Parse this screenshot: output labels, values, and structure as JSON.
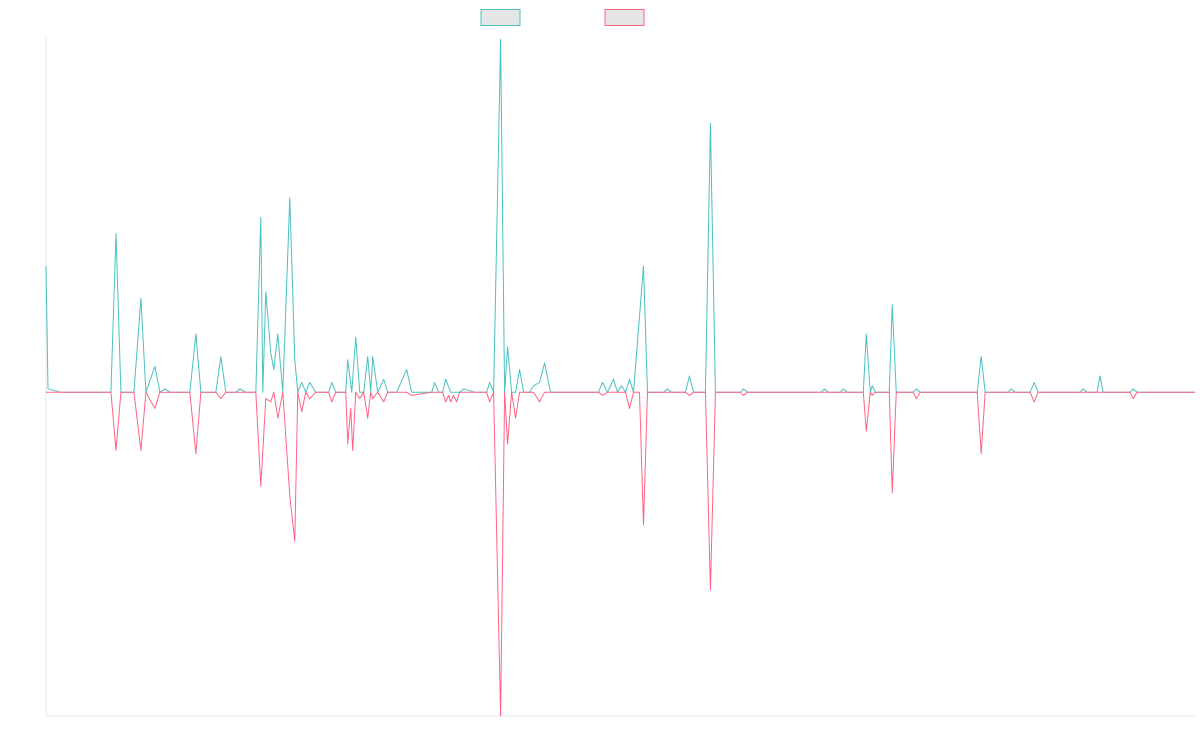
{
  "chart_data": {
    "type": "line",
    "title": "",
    "xlabel": "",
    "ylabel": "",
    "grid": false,
    "legend_position": "top-center",
    "xlim": [
      0,
      1150
    ],
    "ylim": [
      -1,
      1.1
    ],
    "series": [
      {
        "color": "#4bc0c0",
        "legend_fill": "#e6e6e6",
        "points": [
          [
            0,
            0.39
          ],
          [
            2,
            0.01
          ],
          [
            15,
            0
          ],
          [
            65,
            0
          ],
          [
            70,
            0.49
          ],
          [
            75,
            0
          ],
          [
            88,
            0
          ],
          [
            95,
            0.29
          ],
          [
            100,
            0
          ],
          [
            109,
            0.08
          ],
          [
            114,
            0
          ],
          [
            119,
            0.01
          ],
          [
            124,
            0
          ],
          [
            144,
            0
          ],
          [
            150,
            0.18
          ],
          [
            155,
            0
          ],
          [
            160,
            0
          ],
          [
            170,
            0
          ],
          [
            175,
            0.11
          ],
          [
            180,
            0
          ],
          [
            190,
            0
          ],
          [
            194,
            0.01
          ],
          [
            200,
            0
          ],
          [
            210,
            0
          ],
          [
            215,
            0.54
          ],
          [
            217,
            0
          ],
          [
            220,
            0.31
          ],
          [
            225,
            0.12
          ],
          [
            228,
            0.07
          ],
          [
            232,
            0.18
          ],
          [
            237,
            0
          ],
          [
            244,
            0.6
          ],
          [
            249,
            0.1
          ],
          [
            252,
            0
          ],
          [
            256,
            0.03
          ],
          [
            260,
            0
          ],
          [
            264,
            0.03
          ],
          [
            270,
            0
          ],
          [
            283,
            0
          ],
          [
            286,
            0.03
          ],
          [
            290,
            0
          ],
          [
            300,
            0
          ],
          [
            302,
            0.1
          ],
          [
            306,
            0
          ],
          [
            310,
            0.17
          ],
          [
            314,
            0
          ],
          [
            318,
            0
          ],
          [
            322,
            0.11
          ],
          [
            325,
            0
          ],
          [
            327,
            0.11
          ],
          [
            332,
            0
          ],
          [
            338,
            0.04
          ],
          [
            342,
            0
          ],
          [
            351,
            0
          ],
          [
            361,
            0.07
          ],
          [
            366,
            0
          ],
          [
            386,
            0
          ],
          [
            389,
            0.03
          ],
          [
            393,
            0
          ],
          [
            397,
            0
          ],
          [
            400,
            0.04
          ],
          [
            405,
            0
          ],
          [
            414,
            0
          ],
          [
            418,
            0.01
          ],
          [
            429,
            0
          ],
          [
            441,
            0
          ],
          [
            444,
            0.03
          ],
          [
            448,
            0
          ],
          [
            455,
            1.09
          ],
          [
            459,
            0
          ],
          [
            462,
            0.14
          ],
          [
            466,
            0
          ],
          [
            470,
            0
          ],
          [
            474,
            0.07
          ],
          [
            478,
            0
          ],
          [
            484,
            0
          ],
          [
            488,
            0.02
          ],
          [
            494,
            0.03
          ],
          [
            499,
            0.09
          ],
          [
            505,
            0
          ],
          [
            553,
            0
          ],
          [
            557,
            0.03
          ],
          [
            562,
            0
          ],
          [
            568,
            0.04
          ],
          [
            572,
            0
          ],
          [
            576,
            0.02
          ],
          [
            580,
            0
          ],
          [
            584,
            0.04
          ],
          [
            588,
            0
          ],
          [
            598,
            0.39
          ],
          [
            602,
            0
          ],
          [
            618,
            0
          ],
          [
            622,
            0.01
          ],
          [
            626,
            0
          ],
          [
            640,
            0
          ],
          [
            644,
            0.05
          ],
          [
            648,
            0
          ],
          [
            660,
            0
          ],
          [
            665,
            0.83
          ],
          [
            670,
            0
          ],
          [
            695,
            0
          ],
          [
            698,
            0.01
          ],
          [
            702,
            0
          ],
          [
            745,
            0
          ],
          [
            749,
            0
          ],
          [
            776,
            0
          ],
          [
            779,
            0.01
          ],
          [
            783,
            0
          ],
          [
            795,
            0
          ],
          [
            798,
            0.01
          ],
          [
            802,
            0
          ],
          [
            818,
            0
          ],
          [
            821,
            0.18
          ],
          [
            825,
            0
          ],
          [
            827,
            0.02
          ],
          [
            830,
            0
          ],
          [
            844,
            0
          ],
          [
            847,
            0.27
          ],
          [
            851,
            0
          ],
          [
            868,
            0
          ],
          [
            871,
            0.01
          ],
          [
            875,
            0
          ],
          [
            905,
            0
          ],
          [
            908,
            0
          ],
          [
            932,
            0
          ],
          [
            936,
            0.11
          ],
          [
            940,
            0
          ],
          [
            963,
            0
          ],
          [
            966,
            0.01
          ],
          [
            970,
            0
          ],
          [
            985,
            0
          ],
          [
            989,
            0.03
          ],
          [
            993,
            0
          ],
          [
            1035,
            0
          ],
          [
            1038,
            0.01
          ],
          [
            1042,
            0
          ],
          [
            1052,
            0
          ],
          [
            1055,
            0.05
          ],
          [
            1058,
            0
          ],
          [
            1085,
            0
          ],
          [
            1088,
            0.01
          ],
          [
            1092,
            0
          ],
          [
            1150,
            0
          ]
        ]
      },
      {
        "color": "#ff6384",
        "legend_fill": "#e6e6e6",
        "points": [
          [
            0,
            0
          ],
          [
            65,
            0
          ],
          [
            70,
            -0.18
          ],
          [
            75,
            0
          ],
          [
            88,
            0
          ],
          [
            95,
            -0.18
          ],
          [
            100,
            0
          ],
          [
            109,
            -0.05
          ],
          [
            114,
            0
          ],
          [
            124,
            0
          ],
          [
            144,
            0
          ],
          [
            150,
            -0.19
          ],
          [
            155,
            0
          ],
          [
            170,
            0
          ],
          [
            175,
            -0.02
          ],
          [
            180,
            0
          ],
          [
            210,
            0
          ],
          [
            215,
            -0.29
          ],
          [
            220,
            -0.02
          ],
          [
            225,
            -0.03
          ],
          [
            228,
            0
          ],
          [
            232,
            -0.08
          ],
          [
            237,
            0
          ],
          [
            244,
            -0.32
          ],
          [
            249,
            -0.46
          ],
          [
            252,
            0
          ],
          [
            256,
            -0.06
          ],
          [
            260,
            0
          ],
          [
            264,
            -0.02
          ],
          [
            270,
            0
          ],
          [
            283,
            0
          ],
          [
            286,
            -0.03
          ],
          [
            290,
            0
          ],
          [
            300,
            0
          ],
          [
            302,
            -0.16
          ],
          [
            305,
            -0.05
          ],
          [
            307,
            -0.18
          ],
          [
            310,
            0
          ],
          [
            314,
            -0.02
          ],
          [
            318,
            0
          ],
          [
            322,
            -0.08
          ],
          [
            325,
            0
          ],
          [
            327,
            -0.02
          ],
          [
            332,
            0
          ],
          [
            338,
            -0.03
          ],
          [
            342,
            0
          ],
          [
            361,
            0
          ],
          [
            366,
            -0.01
          ],
          [
            386,
            0
          ],
          [
            389,
            0
          ],
          [
            397,
            0
          ],
          [
            400,
            -0.03
          ],
          [
            403,
            -0.01
          ],
          [
            405,
            -0.03
          ],
          [
            408,
            -0.01
          ],
          [
            411,
            -0.03
          ],
          [
            414,
            0
          ],
          [
            441,
            0
          ],
          [
            444,
            -0.03
          ],
          [
            448,
            0
          ],
          [
            455,
            -1.0
          ],
          [
            459,
            0
          ],
          [
            462,
            -0.16
          ],
          [
            466,
            0
          ],
          [
            470,
            -0.08
          ],
          [
            474,
            0
          ],
          [
            484,
            0
          ],
          [
            488,
            0
          ],
          [
            494,
            -0.03
          ],
          [
            499,
            0
          ],
          [
            553,
            0
          ],
          [
            557,
            -0.01
          ],
          [
            562,
            0
          ],
          [
            580,
            0
          ],
          [
            584,
            -0.05
          ],
          [
            588,
            0
          ],
          [
            594,
            0
          ],
          [
            595,
            -0.1
          ],
          [
            598,
            -0.41
          ],
          [
            602,
            0
          ],
          [
            640,
            0
          ],
          [
            644,
            -0.01
          ],
          [
            648,
            0
          ],
          [
            660,
            0
          ],
          [
            665,
            -0.61
          ],
          [
            670,
            0
          ],
          [
            695,
            0
          ],
          [
            698,
            -0.01
          ],
          [
            702,
            0
          ],
          [
            745,
            0
          ],
          [
            749,
            0
          ],
          [
            818,
            0
          ],
          [
            821,
            -0.12
          ],
          [
            825,
            0
          ],
          [
            827,
            -0.01
          ],
          [
            830,
            0
          ],
          [
            844,
            0
          ],
          [
            847,
            -0.31
          ],
          [
            851,
            0
          ],
          [
            868,
            0
          ],
          [
            871,
            -0.02
          ],
          [
            875,
            0
          ],
          [
            905,
            0
          ],
          [
            908,
            0
          ],
          [
            932,
            0
          ],
          [
            936,
            -0.19
          ],
          [
            940,
            0
          ],
          [
            985,
            0
          ],
          [
            989,
            -0.03
          ],
          [
            993,
            0
          ],
          [
            1085,
            0
          ],
          [
            1088,
            -0.02
          ],
          [
            1092,
            0
          ],
          [
            1150,
            0
          ]
        ]
      }
    ]
  }
}
